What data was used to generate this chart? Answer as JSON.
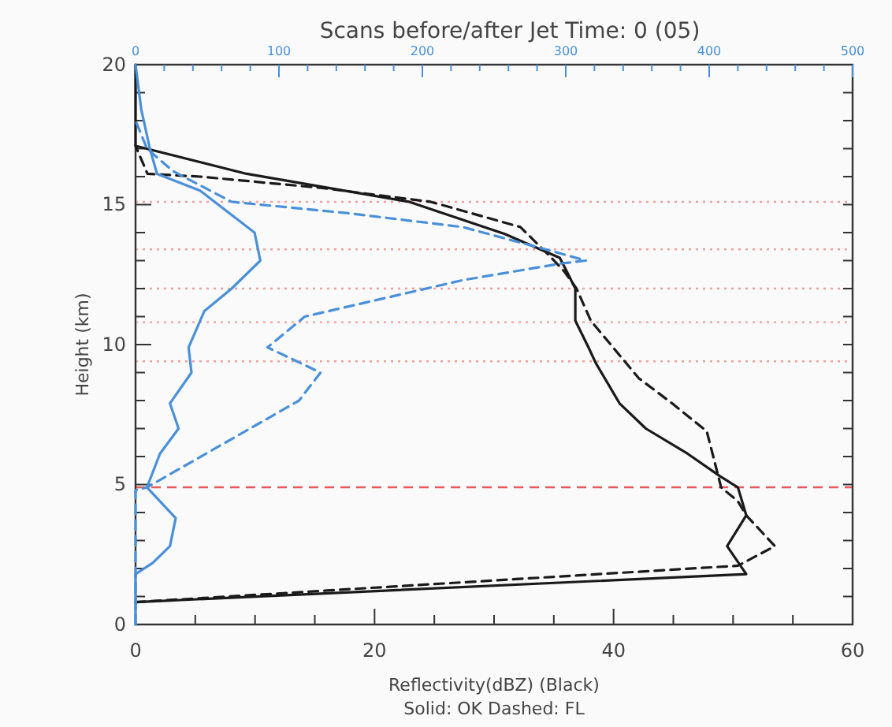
{
  "chart_data": {
    "type": "line",
    "title": "Scans before/after Jet Time: 0 (05)",
    "xlabel": "Reflectivity(dBZ) (Black)",
    "ylabel": "Height (km)",
    "annotations": [
      "Solid: OK  Dashed: FL"
    ],
    "xlim": [
      0,
      60
    ],
    "xticks": [
      0,
      {
        "value": 5,
        "label": null
      },
      {
        "value": 10,
        "label": null
      },
      {
        "value": 15,
        "label": null
      },
      20,
      {
        "value": 25,
        "label": null
      },
      {
        "value": 30,
        "label": null
      },
      {
        "value": 35,
        "label": null
      },
      40,
      {
        "value": 45,
        "label": null
      },
      {
        "value": 50,
        "label": null
      },
      {
        "value": 55,
        "label": null
      },
      60
    ],
    "x2lim": [
      0,
      500
    ],
    "x2ticks": [
      0,
      {
        "value": 20,
        "label": null
      },
      {
        "value": 40,
        "label": null
      },
      {
        "value": 60,
        "label": null
      },
      {
        "value": 80,
        "label": null
      },
      100,
      {
        "value": 120,
        "label": null
      },
      {
        "value": 140,
        "label": null
      },
      {
        "value": 160,
        "label": null
      },
      {
        "value": 180,
        "label": null
      },
      200,
      {
        "value": 220,
        "label": null
      },
      {
        "value": 240,
        "label": null
      },
      {
        "value": 260,
        "label": null
      },
      {
        "value": 280,
        "label": null
      },
      300,
      {
        "value": 320,
        "label": null
      },
      {
        "value": 340,
        "label": null
      },
      {
        "value": 360,
        "label": null
      },
      {
        "value": 380,
        "label": null
      },
      400,
      {
        "value": 420,
        "label": null
      },
      {
        "value": 440,
        "label": null
      },
      {
        "value": 460,
        "label": null
      },
      {
        "value": 480,
        "label": null
      },
      500
    ],
    "ylim": [
      0,
      20
    ],
    "yticks": [
      0,
      {
        "value": 1,
        "label": null
      },
      {
        "value": 2,
        "label": null
      },
      {
        "value": 3,
        "label": null
      },
      {
        "value": 4,
        "label": null
      },
      5,
      {
        "value": 6,
        "label": null
      },
      {
        "value": 7,
        "label": null
      },
      {
        "value": 8,
        "label": null
      },
      {
        "value": 9,
        "label": null
      },
      10,
      {
        "value": 11,
        "label": null
      },
      {
        "value": 12,
        "label": null
      },
      {
        "value": 13,
        "label": null
      },
      {
        "value": 14,
        "label": null
      },
      15,
      {
        "value": 16,
        "label": null
      },
      {
        "value": 17,
        "label": null
      },
      {
        "value": 18,
        "label": null
      },
      {
        "value": 19,
        "label": null
      },
      20
    ],
    "grid": false,
    "ref_lines": [
      {
        "axis": "y",
        "value": 4.9,
        "color": "#e8585c",
        "line_style": "dashed"
      },
      {
        "axis": "y",
        "value": 9.4,
        "color": "#f0a0a0",
        "line_style": "dotted"
      },
      {
        "axis": "y",
        "value": 10.8,
        "color": "#f0a0a0",
        "line_style": "dotted"
      },
      {
        "axis": "y",
        "value": 12.0,
        "color": "#f0a0a0",
        "line_style": "dotted"
      },
      {
        "axis": "y",
        "value": 13.4,
        "color": "#f0a0a0",
        "line_style": "dotted"
      },
      {
        "axis": "y",
        "value": 15.1,
        "color": "#f0a0a0",
        "line_style": "dotted"
      }
    ],
    "series": [
      {
        "color": "#1a1a1a",
        "line_style": "solid",
        "x": [
          0,
          51.1,
          49.5,
          51.1,
          50.4,
          48.9,
          46.2,
          42.7,
          40.5,
          38.5,
          37.9,
          36.8,
          36.8,
          36.1,
          35.5,
          30.9,
          22.9,
          9.3,
          0,
          0
        ],
        "values": [
          0.8,
          1.8,
          2.8,
          3.9,
          4.9,
          5.3,
          6.1,
          7.0,
          7.9,
          9.35,
          9.9,
          10.85,
          12.0,
          12.6,
          13.1,
          13.95,
          15.1,
          16.1,
          17.1,
          20
        ]
      },
      {
        "color": "#1a1a1a",
        "line_style": "dashed",
        "x": [
          0,
          50.4,
          53.5,
          51.1,
          50.4,
          49.0,
          47.8,
          44.9,
          42.1,
          38.1,
          36.9,
          35.9,
          34.8,
          32.2,
          24.7,
          15.5,
          5.4,
          1.0,
          0
        ],
        "values": [
          0.8,
          2.1,
          2.8,
          3.9,
          4.4,
          4.9,
          6.9,
          7.9,
          8.8,
          10.85,
          12.0,
          12.6,
          13.1,
          14.2,
          15.1,
          15.6,
          16.0,
          16.1,
          17.1
        ]
      },
      {
        "color": "#4a90d9",
        "line_style": "solid",
        "axis": "x2",
        "x": [
          0,
          0,
          12,
          24,
          28,
          8,
          17,
          30,
          24,
          39,
          37,
          48,
          67,
          87,
          83,
          45,
          15,
          10,
          4,
          0
        ],
        "values": [
          0,
          1.8,
          2.2,
          2.8,
          3.8,
          4.9,
          6.1,
          7.0,
          7.9,
          9.0,
          9.9,
          11.2,
          12.0,
          13.0,
          14.0,
          15.5,
          16.1,
          17.0,
          18.4,
          20
        ]
      },
      {
        "color": "#4a90d9",
        "line_style": "dashed",
        "axis": "x2",
        "x": [
          0,
          0,
          8,
          114,
          129,
          92,
          118,
          228,
          297,
          314,
          286,
          228,
          147,
          67,
          26,
          8,
          0
        ],
        "values": [
          0,
          4.8,
          4.9,
          8.0,
          9.0,
          9.9,
          11.0,
          12.3,
          12.9,
          13.0,
          13.4,
          14.2,
          14.7,
          15.1,
          16.2,
          17.0,
          18.0
        ]
      }
    ]
  }
}
